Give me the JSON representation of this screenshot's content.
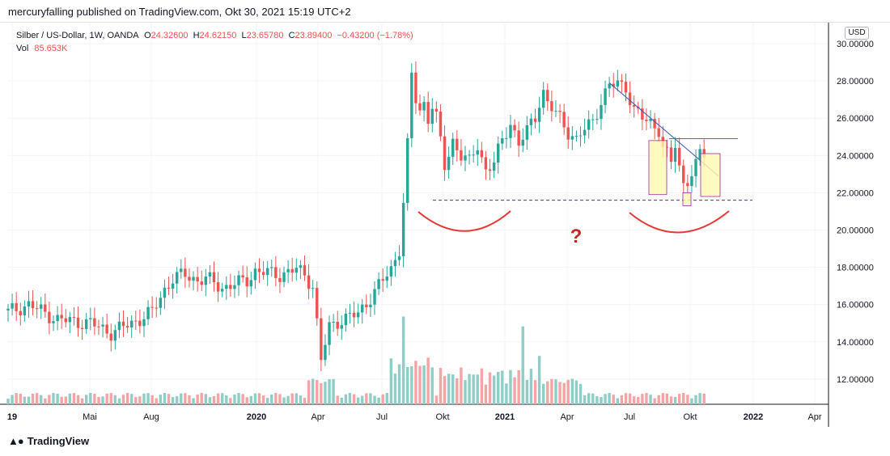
{
  "header": {
    "publisher_text": "mercuryfalling published on TradingView.com, Okt 30, 2021 15:19 UTC+2"
  },
  "legend": {
    "symbol": "Silber / US-Dollar, 1W, OANDA",
    "o_label": "O",
    "o_value": "24.32600",
    "h_label": "H",
    "h_value": "24.62150",
    "l_label": "L",
    "l_value": "23.65780",
    "c_label": "C",
    "c_value": "23.89400",
    "change": "−0.43200 (−1.78%)",
    "vol_label": "Vol",
    "vol_value": "85.653K"
  },
  "currency_badge": "USD",
  "annotation": {
    "question_mark": "?"
  },
  "footer": {
    "brand": "TradingView"
  },
  "colors": {
    "up": "#26a69a",
    "down": "#ef5350",
    "up_volume": "#8fcec7",
    "down_volume": "#f3a5a6",
    "trendline": "#3f51b5",
    "resistance": "#e53935",
    "highlight_fill": "#fff9b0",
    "highlight_border": "#9c27b0",
    "arc": "#e53935"
  },
  "chart_data": {
    "type": "candlestick",
    "interval": "1W",
    "y_axis": {
      "range": [
        10.7,
        31.0
      ],
      "ticks": [
        "30.00000",
        "28.00000",
        "26.00000",
        "24.00000",
        "22.00000",
        "20.00000",
        "18.00000",
        "16.00000",
        "14.00000",
        "12.00000"
      ],
      "side": "right"
    },
    "x_axis": {
      "ticks": [
        "19",
        "Mai",
        "Aug",
        "2020",
        "Apr",
        "Jul",
        "Okt",
        "2021",
        "Apr",
        "Jul",
        "Okt",
        "2022",
        "Apr"
      ]
    },
    "last_price": 23.894
  }
}
